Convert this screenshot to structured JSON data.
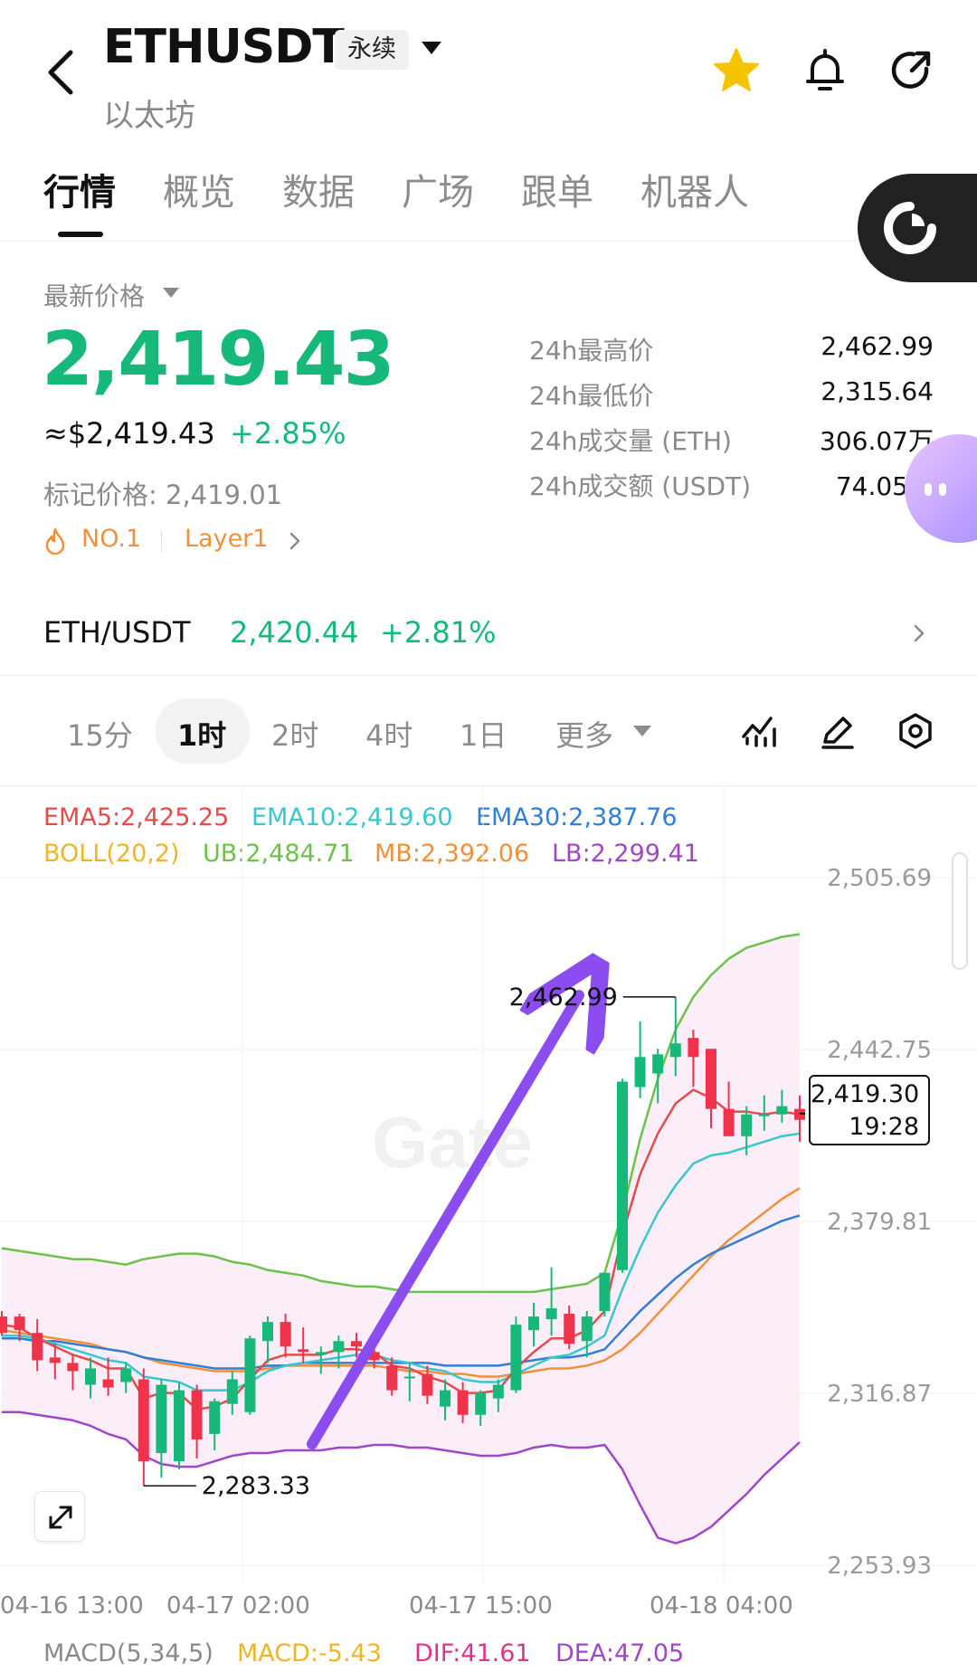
{
  "header": {
    "symbol": "ETHUSDT",
    "contract_type": "永续",
    "name": "以太坊",
    "icons": [
      "back-arrow-icon",
      "star-icon",
      "bell-icon",
      "share-icon"
    ],
    "star_color": "#f5c400"
  },
  "tabs": [
    {
      "label": "行情",
      "active": true
    },
    {
      "label": "概览"
    },
    {
      "label": "数据"
    },
    {
      "label": "广场"
    },
    {
      "label": "跟单"
    },
    {
      "label": "机器人"
    }
  ],
  "price": {
    "label": "最新价格",
    "last": "2,419.43",
    "usd": "≈$2,419.43",
    "change": "+2.85%",
    "mark": "标记价格: 2,419.01",
    "rank": "NO.1",
    "sector": "Layer1",
    "up_color": "#16b979",
    "down_color": "#f0334b"
  },
  "stats": [
    {
      "label": "24h最高价",
      "value": "2,462.99"
    },
    {
      "label": "24h最低价",
      "value": "2,315.64"
    },
    {
      "label": "24h成交量 (ETH)",
      "value": "306.07万"
    },
    {
      "label": "24h成交额 (USDT)",
      "value": "74.05亿"
    }
  ],
  "spot": {
    "pair": "ETH/USDT",
    "price": "2,420.44",
    "change": "+2.81%"
  },
  "timeframes": {
    "items": [
      "15分",
      "1时",
      "2时",
      "4时",
      "1日"
    ],
    "active": "1时",
    "more": "更多"
  },
  "tools": [
    "indicator-icon",
    "draw-icon",
    "settings-icon"
  ],
  "indicators": {
    "ema5": "EMA5:2,425.25",
    "ema10": "EMA10:2,419.60",
    "ema30": "EMA30:2,387.76",
    "boll": "BOLL(20,2)",
    "ub": "UB:2,484.71",
    "mb": "MB:2,392.06",
    "lb": "LB:2,299.41"
  },
  "macd": {
    "label": "MACD(5,34,5)",
    "macd": "MACD:-5.43",
    "dif": "DIF:41.61",
    "dea": "DEA:47.05"
  },
  "chart_data": {
    "type": "candlestick",
    "y_ticks": [
      "2,505.69",
      "2,442.75",
      "2,379.81",
      "2,316.87",
      "2,253.93"
    ],
    "ylim": [
      2253.93,
      2505.69
    ],
    "x_ticks": [
      "04-16 13:00",
      "04-17 02:00",
      "04-17 15:00",
      "04-18 04:00"
    ],
    "high_annotation": "2,462.99",
    "low_annotation": "2,283.33",
    "last_price": "2,419.30",
    "countdown": "19:28",
    "watermark": "Gate",
    "candles": [
      [
        2345,
        2347,
        2338,
        2339
      ],
      [
        2345,
        2346,
        2336,
        2340
      ],
      [
        2339,
        2344,
        2325,
        2329
      ],
      [
        2330,
        2335,
        2322,
        2328
      ],
      [
        2328,
        2331,
        2318,
        2325
      ],
      [
        2320,
        2330,
        2315,
        2326
      ],
      [
        2322,
        2330,
        2316,
        2319
      ],
      [
        2321,
        2328,
        2317,
        2326
      ],
      [
        2322,
        2326,
        2283,
        2292
      ],
      [
        2295,
        2322,
        2286,
        2320
      ],
      [
        2292,
        2321,
        2289,
        2318
      ],
      [
        2318,
        2320,
        2293,
        2300
      ],
      [
        2302,
        2315,
        2296,
        2314
      ],
      [
        2313,
        2325,
        2309,
        2322
      ],
      [
        2310,
        2338,
        2309,
        2337
      ],
      [
        2336,
        2345,
        2328,
        2343
      ],
      [
        2343,
        2346,
        2330,
        2334
      ],
      [
        2333,
        2341,
        2328,
        2332
      ],
      [
        2331,
        2334,
        2324,
        2332
      ],
      [
        2332,
        2338,
        2326,
        2336
      ],
      [
        2336,
        2339,
        2330,
        2334
      ],
      [
        2332,
        2337,
        2326,
        2329
      ],
      [
        2327,
        2330,
        2316,
        2318
      ],
      [
        2323,
        2328,
        2314,
        2323
      ],
      [
        2324,
        2327,
        2313,
        2316
      ],
      [
        2312,
        2322,
        2307,
        2318
      ],
      [
        2318,
        2321,
        2306,
        2309
      ],
      [
        2309,
        2318,
        2305,
        2317
      ],
      [
        2315,
        2322,
        2310,
        2320
      ],
      [
        2318,
        2345,
        2317,
        2342
      ],
      [
        2340,
        2350,
        2334,
        2345
      ],
      [
        2344,
        2363,
        2338,
        2348
      ],
      [
        2346,
        2349,
        2333,
        2335
      ],
      [
        2336,
        2347,
        2330,
        2345
      ],
      [
        2347,
        2361,
        2345,
        2361
      ],
      [
        2362,
        2432,
        2361,
        2431
      ],
      [
        2429,
        2453,
        2425,
        2440
      ],
      [
        2434,
        2443,
        2423,
        2441
      ],
      [
        2440,
        2462,
        2433,
        2445
      ],
      [
        2447,
        2450,
        2429,
        2440
      ],
      [
        2443,
        2443,
        2414,
        2421
      ],
      [
        2421,
        2431,
        2411,
        2411
      ],
      [
        2411,
        2422,
        2404,
        2419
      ],
      [
        2419,
        2426,
        2413,
        2419
      ],
      [
        2419,
        2428,
        2416,
        2422
      ],
      [
        2421,
        2426,
        2409,
        2417
      ]
    ],
    "ema5": [
      2342,
      2341,
      2337,
      2334,
      2331,
      2329,
      2326,
      2326,
      2315,
      2317,
      2317,
      2311,
      2312,
      2315,
      2322,
      2329,
      2331,
      2331,
      2331,
      2333,
      2333,
      2332,
      2327,
      2326,
      2323,
      2321,
      2317,
      2317,
      2318,
      2326,
      2332,
      2337,
      2337,
      2340,
      2347,
      2375,
      2397,
      2412,
      2423,
      2428,
      2425,
      2420,
      2420,
      2419,
      2420,
      2419
    ],
    "ema10": [
      2338,
      2338,
      2337,
      2335,
      2333,
      2331,
      2329,
      2328,
      2323,
      2322,
      2321,
      2318,
      2318,
      2318,
      2321,
      2325,
      2327,
      2328,
      2329,
      2330,
      2331,
      2331,
      2329,
      2328,
      2326,
      2325,
      2322,
      2321,
      2321,
      2324,
      2327,
      2330,
      2331,
      2334,
      2338,
      2355,
      2370,
      2383,
      2393,
      2401,
      2404,
      2405,
      2407,
      2409,
      2411,
      2412
    ],
    "ema30": [
      2337,
      2337,
      2336,
      2336,
      2335,
      2334,
      2333,
      2332,
      2330,
      2329,
      2328,
      2327,
      2326,
      2326,
      2326,
      2327,
      2327,
      2328,
      2328,
      2328,
      2328,
      2328,
      2328,
      2328,
      2328,
      2327,
      2327,
      2327,
      2327,
      2328,
      2329,
      2330,
      2330,
      2331,
      2333,
      2340,
      2347,
      2353,
      2359,
      2364,
      2368,
      2371,
      2374,
      2377,
      2380,
      2382
    ],
    "boll_ub": [
      2370,
      2369,
      2368,
      2367,
      2366,
      2366,
      2365,
      2364,
      2366,
      2367,
      2368,
      2368,
      2367,
      2365,
      2364,
      2362,
      2361,
      2360,
      2358,
      2357,
      2356,
      2356,
      2355,
      2354,
      2354,
      2354,
      2354,
      2354,
      2354,
      2354,
      2354,
      2355,
      2356,
      2357,
      2361,
      2383,
      2410,
      2432,
      2450,
      2462,
      2470,
      2476,
      2480,
      2482,
      2484,
      2485
    ],
    "boll_mb": [
      2340,
      2339,
      2338,
      2337,
      2336,
      2335,
      2333,
      2332,
      2330,
      2328,
      2327,
      2326,
      2325,
      2325,
      2325,
      2326,
      2327,
      2327,
      2327,
      2327,
      2327,
      2327,
      2326,
      2325,
      2325,
      2324,
      2324,
      2323,
      2323,
      2324,
      2325,
      2326,
      2326,
      2327,
      2329,
      2333,
      2339,
      2346,
      2353,
      2360,
      2367,
      2373,
      2378,
      2383,
      2388,
      2392
    ],
    "boll_lb": [
      2310,
      2310,
      2309,
      2308,
      2307,
      2305,
      2302,
      2300,
      2294,
      2291,
      2290,
      2290,
      2292,
      2294,
      2295,
      2295,
      2296,
      2296,
      2296,
      2297,
      2297,
      2298,
      2298,
      2297,
      2297,
      2296,
      2295,
      2294,
      2294,
      2295,
      2297,
      2298,
      2297,
      2297,
      2298,
      2289,
      2276,
      2264,
      2262,
      2264,
      2268,
      2274,
      2280,
      2287,
      2293,
      2299
    ]
  }
}
